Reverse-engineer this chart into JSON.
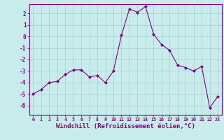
{
  "x": [
    0,
    1,
    2,
    3,
    4,
    5,
    6,
    7,
    8,
    9,
    10,
    11,
    12,
    13,
    14,
    15,
    16,
    17,
    18,
    19,
    20,
    21,
    22,
    23
  ],
  "y": [
    -5.0,
    -4.6,
    -4.0,
    -3.9,
    -3.3,
    -2.9,
    -2.9,
    -3.5,
    -3.4,
    -4.0,
    -3.0,
    0.1,
    2.4,
    2.1,
    2.6,
    0.2,
    -0.7,
    -1.2,
    -2.5,
    -2.7,
    -3.0,
    -2.6,
    -6.2,
    -5.2
  ],
  "line_color": "#800080",
  "marker": "D",
  "marker_size": 2,
  "bg_color": "#c8ecec",
  "grid_color": "#a8d4d4",
  "xlabel": "Windchill (Refroidissement éolien,°C)",
  "xlim": [
    -0.5,
    23.5
  ],
  "ylim": [
    -6.8,
    2.8
  ],
  "yticks": [
    2,
    1,
    0,
    -1,
    -2,
    -3,
    -4,
    -5,
    -6
  ],
  "xticks": [
    0,
    1,
    2,
    3,
    4,
    5,
    6,
    7,
    8,
    9,
    10,
    11,
    12,
    13,
    14,
    15,
    16,
    17,
    18,
    19,
    20,
    21,
    22,
    23
  ],
  "tick_color": "#800080",
  "label_color": "#800080",
  "axis_color": "#800080",
  "title_fontsize": 5.5,
  "xlabel_fontsize": 6.5
}
